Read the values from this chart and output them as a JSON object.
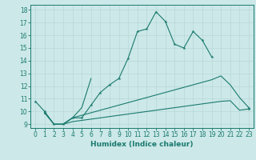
{
  "xlabel": "Humidex (Indice chaleur)",
  "bg_color": "#cce8e8",
  "grid_color": "#b8d8d8",
  "line_color": "#1a7a6e",
  "xlim": [
    -0.5,
    23.5
  ],
  "ylim": [
    8.7,
    18.4
  ],
  "xticks": [
    0,
    1,
    2,
    3,
    4,
    5,
    6,
    7,
    8,
    9,
    10,
    11,
    12,
    13,
    14,
    15,
    16,
    17,
    18,
    19,
    20,
    21,
    22,
    23
  ],
  "yticks": [
    9,
    10,
    11,
    12,
    13,
    14,
    15,
    16,
    17,
    18
  ],
  "line1_x": [
    0,
    1,
    2,
    3,
    4,
    5,
    6,
    7,
    8,
    9,
    10,
    11,
    12,
    13,
    14,
    15,
    16,
    17,
    18,
    19
  ],
  "line1_y": [
    10.8,
    10.0,
    9.0,
    9.0,
    9.5,
    9.5,
    10.5,
    11.5,
    12.1,
    12.6,
    14.2,
    16.3,
    16.5,
    17.85,
    17.1,
    15.3,
    15.0,
    16.3,
    15.6,
    14.3
  ],
  "line2_x": [
    3,
    4,
    5,
    6
  ],
  "line2_y": [
    9.0,
    9.5,
    10.3,
    12.6
  ],
  "line3_x": [
    1,
    2,
    3,
    4,
    5,
    6,
    7,
    8,
    9,
    10,
    11,
    12,
    13,
    14,
    15,
    16,
    17,
    18,
    19,
    20,
    21,
    22,
    23
  ],
  "line3_y": [
    9.9,
    9.0,
    9.0,
    9.5,
    9.7,
    9.9,
    10.1,
    10.3,
    10.5,
    10.7,
    10.9,
    11.1,
    11.3,
    11.5,
    11.7,
    11.9,
    12.1,
    12.3,
    12.5,
    12.8,
    12.1,
    11.1,
    10.3
  ],
  "line4_x": [
    1,
    2,
    3,
    4,
    5,
    6,
    7,
    8,
    9,
    10,
    11,
    12,
    13,
    14,
    15,
    16,
    17,
    18,
    19,
    20,
    21,
    22,
    23
  ],
  "line4_y": [
    9.9,
    9.0,
    9.0,
    9.2,
    9.3,
    9.4,
    9.5,
    9.6,
    9.7,
    9.8,
    9.9,
    10.0,
    10.1,
    10.2,
    10.3,
    10.4,
    10.5,
    10.6,
    10.7,
    10.8,
    10.85,
    10.1,
    10.2
  ]
}
